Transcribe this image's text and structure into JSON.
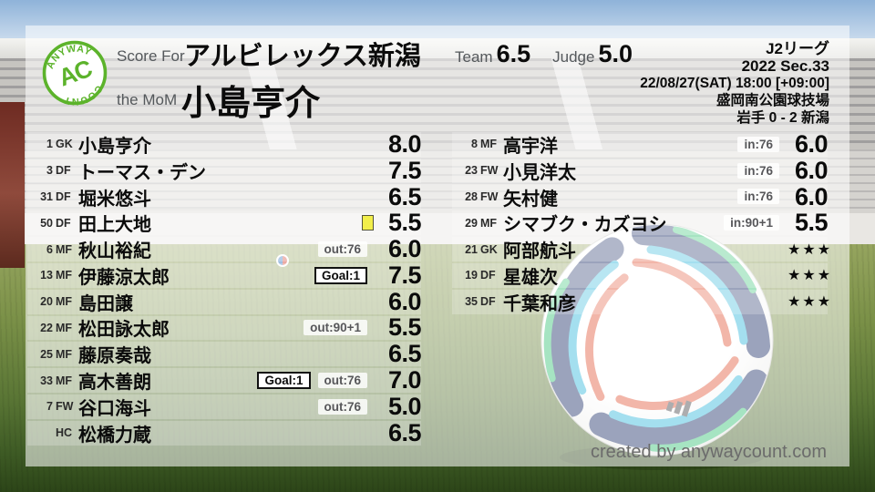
{
  "logo": {
    "top": "ANYWAY",
    "center": "AC",
    "bottom": "COUNT"
  },
  "header": {
    "score_for_label": "Score For",
    "team_name": "アルビレックス新潟",
    "mom_label": "the MoM",
    "mom_name": "小島亨介",
    "team_label": "Team",
    "team_score": "6.5",
    "judge_label": "Judge",
    "judge_score": "5.0",
    "league": "J2リーグ",
    "season": "2022 Sec.33",
    "datetime": "22/08/27(SAT) 18:00 [+09:00]",
    "venue": "盛岡南公園球技場",
    "result": "岩手 0 - 2 新潟"
  },
  "columns": {
    "left": {
      "rows": [
        {
          "number": "1",
          "pos": "GK",
          "name": "小島亨介",
          "badges": [],
          "yellow_card": false,
          "rating": "8.0"
        },
        {
          "number": "3",
          "pos": "DF",
          "name": "トーマス・デン",
          "badges": [],
          "yellow_card": false,
          "rating": "7.5"
        },
        {
          "number": "31",
          "pos": "DF",
          "name": "堀米悠斗",
          "badges": [],
          "yellow_card": false,
          "rating": "6.5"
        },
        {
          "number": "50",
          "pos": "DF",
          "name": "田上大地",
          "badges": [],
          "yellow_card": true,
          "rating": "5.5"
        },
        {
          "number": "6",
          "pos": "MF",
          "name": "秋山裕紀",
          "badges": [
            {
              "type": "sub",
              "label": "out:76"
            }
          ],
          "yellow_card": false,
          "rating": "6.0"
        },
        {
          "number": "13",
          "pos": "MF",
          "name": "伊藤涼太郎",
          "badges": [
            {
              "type": "goal",
              "label": "Goal:1"
            }
          ],
          "yellow_card": false,
          "rating": "7.5"
        },
        {
          "number": "20",
          "pos": "MF",
          "name": "島田譲",
          "badges": [],
          "yellow_card": false,
          "rating": "6.0"
        },
        {
          "number": "22",
          "pos": "MF",
          "name": "松田詠太郎",
          "badges": [
            {
              "type": "sub",
              "label": "out:90+1"
            }
          ],
          "yellow_card": false,
          "rating": "5.5"
        },
        {
          "number": "25",
          "pos": "MF",
          "name": "藤原奏哉",
          "badges": [],
          "yellow_card": false,
          "rating": "6.5"
        },
        {
          "number": "33",
          "pos": "MF",
          "name": "高木善朗",
          "badges": [
            {
              "type": "goal",
              "label": "Goal:1"
            },
            {
              "type": "sub",
              "label": "out:76"
            }
          ],
          "yellow_card": false,
          "rating": "7.0"
        },
        {
          "number": "7",
          "pos": "FW",
          "name": "谷口海斗",
          "badges": [
            {
              "type": "sub",
              "label": "out:76"
            }
          ],
          "yellow_card": false,
          "rating": "5.0"
        },
        {
          "number": "",
          "pos": "HC",
          "name": "松橋力蔵",
          "badges": [],
          "yellow_card": false,
          "rating": "6.5"
        }
      ]
    },
    "right": {
      "rows": [
        {
          "number": "8",
          "pos": "MF",
          "name": "高宇洋",
          "badges": [
            {
              "type": "sub",
              "label": "in:76"
            }
          ],
          "yellow_card": false,
          "rating": "6.0"
        },
        {
          "number": "23",
          "pos": "FW",
          "name": "小見洋太",
          "badges": [
            {
              "type": "sub",
              "label": "in:76"
            }
          ],
          "yellow_card": false,
          "rating": "6.0"
        },
        {
          "number": "28",
          "pos": "FW",
          "name": "矢村健",
          "badges": [
            {
              "type": "sub",
              "label": "in:76"
            }
          ],
          "yellow_card": false,
          "rating": "6.0"
        },
        {
          "number": "29",
          "pos": "MF",
          "name": "シマブク・カズヨシ",
          "badges": [
            {
              "type": "sub",
              "label": "in:90+1"
            }
          ],
          "yellow_card": false,
          "rating": "5.5"
        },
        {
          "number": "21",
          "pos": "GK",
          "name": "阿部航斗",
          "badges": [],
          "yellow_card": false,
          "rating": "★★★"
        },
        {
          "number": "19",
          "pos": "DF",
          "name": "星雄次",
          "badges": [],
          "yellow_card": false,
          "rating": "★★★"
        },
        {
          "number": "35",
          "pos": "DF",
          "name": "千葉和彦",
          "badges": [],
          "yellow_card": false,
          "rating": "★★★"
        }
      ]
    }
  },
  "footer": {
    "credit": "created by anywaycount.com"
  },
  "colors": {
    "accent_green": "#5cb32b",
    "yellow_card": "#f2ef4b",
    "badge_text": "#57575a"
  }
}
